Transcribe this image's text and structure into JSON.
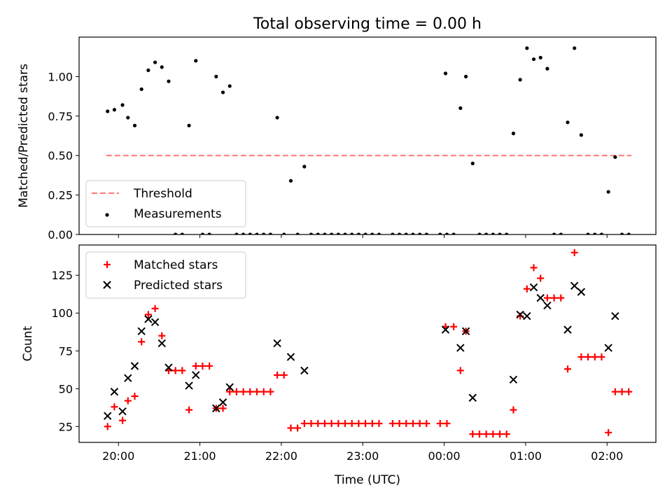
{
  "chart_data": {
    "title": "Total observing time = 0.00 h",
    "xlabel": "Time (UTC)",
    "x_unit": "hours UTC",
    "xlim": [
      "19:31",
      "02:36"
    ],
    "xticks": [
      "20:00",
      "21:00",
      "22:00",
      "23:00",
      "00:00",
      "01:00",
      "02:00"
    ],
    "panels": [
      {
        "type": "line+scatter",
        "ylabel": "Matched/Predicted stars",
        "ylim": [
          0,
          1.25
        ],
        "yticks": [
          "0.00",
          "0.25",
          "0.50",
          "0.75",
          "1.00"
        ],
        "legend": {
          "placement": "lower-left",
          "entries": [
            "Threshold",
            "Measurements"
          ]
        },
        "threshold": {
          "name": "Threshold",
          "y": 0.5,
          "x_range": [
            "19:51",
            "02:18"
          ],
          "color": "#ff7f7f",
          "style": "dashed"
        },
        "series": [
          {
            "name": "Measurements",
            "color": "#000000",
            "marker": "dot",
            "points": [
              [
                "19:52",
                0.78
              ],
              [
                "19:57",
                0.79
              ],
              [
                "20:03",
                0.82
              ],
              [
                "20:07",
                0.74
              ],
              [
                "20:12",
                0.69
              ],
              [
                "20:17",
                0.92
              ],
              [
                "20:22",
                1.04
              ],
              [
                "20:27",
                1.09
              ],
              [
                "20:32",
                1.06
              ],
              [
                "20:37",
                0.97
              ],
              [
                "20:42",
                0.0
              ],
              [
                "20:47",
                0.0
              ],
              [
                "20:52",
                0.69
              ],
              [
                "20:57",
                1.1
              ],
              [
                "21:02",
                0.0
              ],
              [
                "21:07",
                0.0
              ],
              [
                "21:12",
                1.0
              ],
              [
                "21:17",
                0.9
              ],
              [
                "21:22",
                0.94
              ],
              [
                "21:27",
                0.0
              ],
              [
                "21:32",
                0.0
              ],
              [
                "21:37",
                0.0
              ],
              [
                "21:42",
                0.0
              ],
              [
                "21:47",
                0.0
              ],
              [
                "21:52",
                0.0
              ],
              [
                "21:57",
                0.74
              ],
              [
                "22:02",
                0.0
              ],
              [
                "22:07",
                0.34
              ],
              [
                "22:12",
                0.0
              ],
              [
                "22:17",
                0.43
              ],
              [
                "22:22",
                0.0
              ],
              [
                "22:27",
                0.0
              ],
              [
                "22:32",
                0.0
              ],
              [
                "22:37",
                0.0
              ],
              [
                "22:42",
                0.0
              ],
              [
                "22:47",
                0.0
              ],
              [
                "22:52",
                0.0
              ],
              [
                "22:57",
                0.0
              ],
              [
                "23:02",
                0.0
              ],
              [
                "23:07",
                0.0
              ],
              [
                "23:12",
                0.0
              ],
              [
                "23:22",
                0.0
              ],
              [
                "23:27",
                0.0
              ],
              [
                "23:32",
                0.0
              ],
              [
                "23:37",
                0.0
              ],
              [
                "23:42",
                0.0
              ],
              [
                "23:47",
                0.0
              ],
              [
                "23:57",
                0.0
              ],
              [
                "00:02",
                0.0
              ],
              [
                "00:01",
                1.02
              ],
              [
                "00:07",
                0.0
              ],
              [
                "00:12",
                0.8
              ],
              [
                "00:16",
                1.0
              ],
              [
                "00:21",
                0.45
              ],
              [
                "00:26",
                0.0
              ],
              [
                "00:31",
                0.0
              ],
              [
                "00:36",
                0.0
              ],
              [
                "00:41",
                0.0
              ],
              [
                "00:46",
                0.0
              ],
              [
                "00:51",
                0.64
              ],
              [
                "00:56",
                0.98
              ],
              [
                "01:01",
                1.18
              ],
              [
                "01:06",
                1.11
              ],
              [
                "01:11",
                1.12
              ],
              [
                "01:16",
                1.05
              ],
              [
                "01:21",
                0.0
              ],
              [
                "01:26",
                0.0
              ],
              [
                "01:31",
                0.71
              ],
              [
                "01:36",
                1.18
              ],
              [
                "01:41",
                0.63
              ],
              [
                "01:46",
                0.0
              ],
              [
                "01:51",
                0.0
              ],
              [
                "01:56",
                0.0
              ],
              [
                "02:01",
                0.27
              ],
              [
                "02:06",
                0.49
              ],
              [
                "02:11",
                0.0
              ],
              [
                "02:16",
                0.0
              ]
            ]
          }
        ]
      },
      {
        "type": "scatter",
        "ylabel": "Count",
        "ylim": [
          14.5,
          145
        ],
        "yticks": [
          "25",
          "50",
          "75",
          "100",
          "125"
        ],
        "legend": {
          "placement": "top-left",
          "entries": [
            "Matched stars",
            "Predicted stars"
          ]
        },
        "series": [
          {
            "name": "Matched stars",
            "color": "#ff0000",
            "marker": "plus",
            "points": [
              [
                "19:52",
                25
              ],
              [
                "19:57",
                38
              ],
              [
                "20:03",
                29
              ],
              [
                "20:07",
                42
              ],
              [
                "20:12",
                45
              ],
              [
                "20:17",
                81
              ],
              [
                "20:22",
                99
              ],
              [
                "20:27",
                103
              ],
              [
                "20:32",
                85
              ],
              [
                "20:37",
                62
              ],
              [
                "20:42",
                62
              ],
              [
                "20:47",
                62
              ],
              [
                "20:52",
                36
              ],
              [
                "20:57",
                65
              ],
              [
                "21:02",
                65
              ],
              [
                "21:07",
                65
              ],
              [
                "21:12",
                37
              ],
              [
                "21:17",
                37
              ],
              [
                "21:22",
                48
              ],
              [
                "21:27",
                48
              ],
              [
                "21:32",
                48
              ],
              [
                "21:37",
                48
              ],
              [
                "21:42",
                48
              ],
              [
                "21:47",
                48
              ],
              [
                "21:52",
                48
              ],
              [
                "21:57",
                59
              ],
              [
                "22:02",
                59
              ],
              [
                "22:07",
                24
              ],
              [
                "22:12",
                24
              ],
              [
                "22:17",
                27
              ],
              [
                "22:22",
                27
              ],
              [
                "22:27",
                27
              ],
              [
                "22:32",
                27
              ],
              [
                "22:37",
                27
              ],
              [
                "22:42",
                27
              ],
              [
                "22:47",
                27
              ],
              [
                "22:52",
                27
              ],
              [
                "22:57",
                27
              ],
              [
                "23:02",
                27
              ],
              [
                "23:07",
                27
              ],
              [
                "23:12",
                27
              ],
              [
                "23:22",
                27
              ],
              [
                "23:27",
                27
              ],
              [
                "23:32",
                27
              ],
              [
                "23:37",
                27
              ],
              [
                "23:42",
                27
              ],
              [
                "23:47",
                27
              ],
              [
                "23:57",
                27
              ],
              [
                "00:02",
                27
              ],
              [
                "00:01",
                91
              ],
              [
                "00:07",
                91
              ],
              [
                "00:12",
                62
              ],
              [
                "00:16",
                88
              ],
              [
                "00:21",
                20
              ],
              [
                "00:26",
                20
              ],
              [
                "00:31",
                20
              ],
              [
                "00:36",
                20
              ],
              [
                "00:41",
                20
              ],
              [
                "00:46",
                20
              ],
              [
                "00:51",
                36
              ],
              [
                "00:56",
                98
              ],
              [
                "01:01",
                116
              ],
              [
                "01:06",
                130
              ],
              [
                "01:11",
                123
              ],
              [
                "01:16",
                110
              ],
              [
                "01:21",
                110
              ],
              [
                "01:26",
                110
              ],
              [
                "01:31",
                63
              ],
              [
                "01:36",
                140
              ],
              [
                "01:41",
                71
              ],
              [
                "01:46",
                71
              ],
              [
                "01:51",
                71
              ],
              [
                "01:56",
                71
              ],
              [
                "02:01",
                21
              ],
              [
                "02:06",
                48
              ],
              [
                "02:11",
                48
              ],
              [
                "02:16",
                48
              ]
            ]
          },
          {
            "name": "Predicted stars",
            "color": "#000000",
            "marker": "x",
            "points": [
              [
                "19:52",
                32
              ],
              [
                "19:57",
                48
              ],
              [
                "20:03",
                35
              ],
              [
                "20:07",
                57
              ],
              [
                "20:12",
                65
              ],
              [
                "20:17",
                88
              ],
              [
                "20:22",
                96
              ],
              [
                "20:27",
                94
              ],
              [
                "20:32",
                80
              ],
              [
                "20:37",
                64
              ],
              [
                "20:52",
                52
              ],
              [
                "20:57",
                59
              ],
              [
                "21:12",
                37
              ],
              [
                "21:17",
                41
              ],
              [
                "21:22",
                51
              ],
              [
                "21:57",
                80
              ],
              [
                "22:07",
                71
              ],
              [
                "22:17",
                62
              ],
              [
                "00:01",
                89
              ],
              [
                "00:12",
                77
              ],
              [
                "00:16",
                88
              ],
              [
                "00:21",
                44
              ],
              [
                "00:51",
                56
              ],
              [
                "00:56",
                99
              ],
              [
                "01:01",
                98
              ],
              [
                "01:06",
                117
              ],
              [
                "01:11",
                110
              ],
              [
                "01:16",
                105
              ],
              [
                "01:31",
                89
              ],
              [
                "01:36",
                118
              ],
              [
                "01:41",
                114
              ],
              [
                "02:01",
                77
              ],
              [
                "02:06",
                98
              ]
            ]
          }
        ]
      }
    ]
  }
}
